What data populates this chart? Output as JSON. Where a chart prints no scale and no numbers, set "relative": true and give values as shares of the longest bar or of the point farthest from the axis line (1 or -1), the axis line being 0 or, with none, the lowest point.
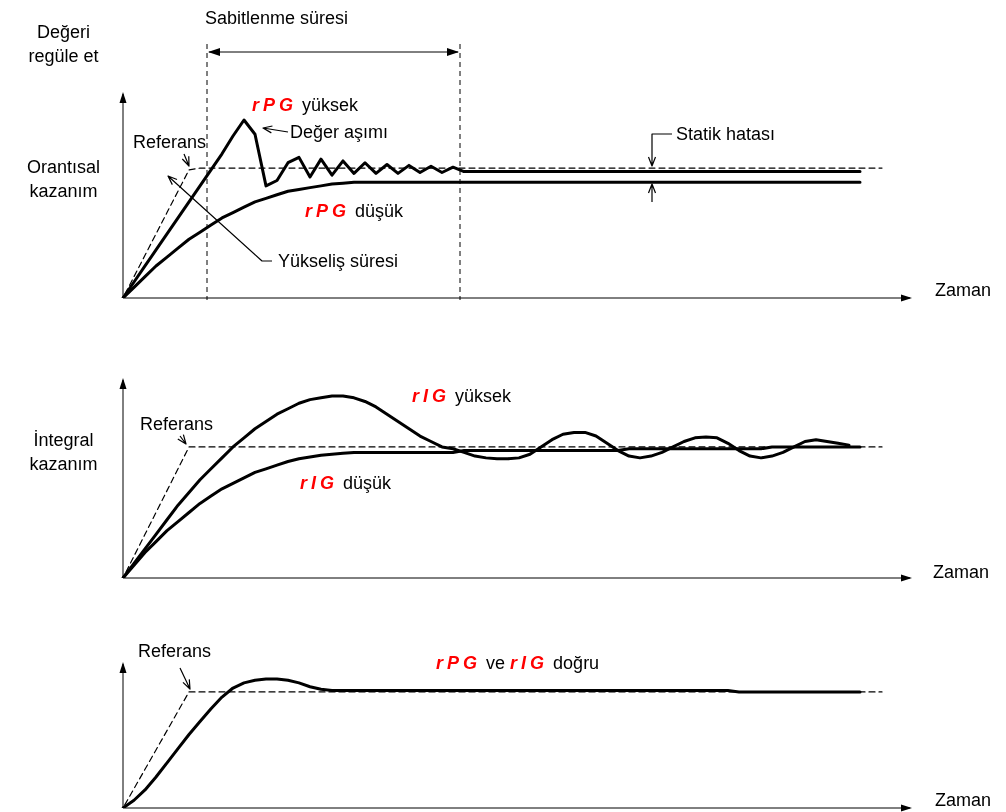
{
  "chart_data": [
    {
      "type": "line",
      "title": "Orantısal kazanım",
      "ylabel": "Değeri regüle et",
      "xlabel": "Zaman",
      "relative": true,
      "legend": false,
      "grid": false,
      "marker": "none",
      "categories": [
        null,
        null,
        null,
        null,
        null,
        null,
        null,
        null,
        null,
        null,
        null,
        null,
        null,
        null,
        null,
        null,
        null,
        null,
        null,
        null,
        null,
        null,
        null,
        null,
        null,
        null,
        null,
        null,
        null,
        null,
        null,
        null,
        null,
        null,
        null,
        null,
        null,
        null,
        null,
        null,
        null,
        null,
        null,
        null,
        null,
        null,
        null,
        null,
        null,
        null,
        null,
        null,
        null,
        null,
        null,
        null,
        null,
        null,
        null,
        null,
        null,
        null,
        null,
        null,
        null,
        null,
        null,
        null,
        null,
        null,
        null,
        null
      ],
      "series": [
        {
          "name": "rPG yüksek",
          "color": "#000000",
          "values": [
            0,
            0.09,
            0.18,
            0.27,
            0.36,
            0.45,
            0.54,
            0.63,
            0.72,
            0.81,
            0.91,
            1.0,
            0.92,
            0.63,
            0.66,
            0.76,
            0.79,
            0.68,
            0.78,
            0.69,
            0.77,
            0.7,
            0.76,
            0.7,
            0.75,
            0.7,
            0.745,
            0.705,
            0.74,
            0.705,
            0.735,
            0.71,
            0.71,
            0.71,
            0.71,
            0.71,
            0.71,
            0.71,
            0.71,
            0.71,
            0.71,
            0.71,
            0.71,
            0.71,
            0.71,
            0.71,
            0.71,
            0.71,
            0.71,
            0.71,
            0.71,
            0.71,
            0.71,
            0.71,
            0.71,
            0.71,
            0.71,
            0.71,
            0.71,
            0.71,
            0.71,
            0.71,
            0.71,
            0.71,
            0.71,
            0.71,
            0.71,
            0.71,
            null,
            null,
            null,
            null
          ]
        },
        {
          "name": "rPG düşük",
          "color": "#000000",
          "values": [
            0,
            0.06,
            0.12,
            0.18,
            0.23,
            0.28,
            0.33,
            0.37,
            0.41,
            0.45,
            0.48,
            0.51,
            0.54,
            0.56,
            0.58,
            0.6,
            0.61,
            0.62,
            0.63,
            0.64,
            0.645,
            0.65,
            0.65,
            0.65,
            0.65,
            0.65,
            0.65,
            0.65,
            0.65,
            0.65,
            0.65,
            0.65,
            0.65,
            0.65,
            0.65,
            0.65,
            0.65,
            0.65,
            0.65,
            0.65,
            0.65,
            0.65,
            0.65,
            0.65,
            0.65,
            0.65,
            0.65,
            0.65,
            0.65,
            0.65,
            0.65,
            0.65,
            0.65,
            0.65,
            0.65,
            0.65,
            0.65,
            0.65,
            0.65,
            0.65,
            0.65,
            0.65,
            0.65,
            0.65,
            0.65,
            0.65,
            0.65,
            0.65,
            null,
            null,
            null,
            null
          ]
        },
        {
          "name": "Referans",
          "color": "#000000",
          "line_style": "dashed",
          "values": [
            0,
            0.12,
            0.24,
            0.36,
            0.48,
            0.6,
            0.72,
            0.73,
            0.73,
            0.73,
            0.73,
            0.73,
            0.73,
            0.73,
            0.73,
            0.73,
            0.73,
            0.73,
            0.73,
            0.73,
            0.73,
            0.73,
            0.73,
            0.73,
            0.73,
            0.73,
            0.73,
            0.73,
            0.73,
            0.73,
            0.73,
            0.73,
            0.73,
            0.73,
            0.73,
            0.73,
            0.73,
            0.73,
            0.73,
            0.73,
            0.73,
            0.73,
            0.73,
            0.73,
            0.73,
            0.73,
            0.73,
            0.73,
            0.73,
            0.73,
            0.73,
            0.73,
            0.73,
            0.73,
            0.73,
            0.73,
            0.73,
            0.73,
            0.73,
            0.73,
            0.73,
            0.73,
            0.73,
            0.73,
            0.73,
            0.73,
            0.73,
            0.73,
            0.73,
            0.73,
            null,
            null
          ]
        }
      ],
      "annotations": [
        "Sabitlenme süresi",
        "Değer aşımı",
        "Statik hatası",
        "Yükseliş süresi"
      ]
    },
    {
      "type": "line",
      "title": "İntegral kazanım",
      "xlabel": "Zaman",
      "relative": true,
      "legend": false,
      "grid": false,
      "marker": "none",
      "categories": [
        null,
        null,
        null,
        null,
        null,
        null,
        null,
        null,
        null,
        null,
        null,
        null,
        null,
        null,
        null,
        null,
        null,
        null,
        null,
        null,
        null,
        null,
        null,
        null,
        null,
        null,
        null,
        null,
        null,
        null,
        null,
        null,
        null,
        null,
        null,
        null,
        null,
        null,
        null,
        null,
        null,
        null,
        null,
        null,
        null,
        null,
        null,
        null,
        null,
        null,
        null,
        null,
        null,
        null,
        null,
        null,
        null,
        null,
        null,
        null,
        null,
        null,
        null,
        null,
        null,
        null,
        null,
        null,
        null,
        null,
        null,
        null
      ],
      "series": [
        {
          "name": "rIG yüksek",
          "color": "#000000",
          "values": [
            0,
            0.08,
            0.16,
            0.24,
            0.32,
            0.4,
            0.47,
            0.54,
            0.6,
            0.66,
            0.72,
            0.77,
            0.82,
            0.86,
            0.9,
            0.93,
            0.96,
            0.98,
            0.99,
            1.0,
            1.0,
            0.99,
            0.97,
            0.94,
            0.9,
            0.86,
            0.82,
            0.78,
            0.75,
            0.72,
            0.71,
            0.69,
            0.67,
            0.66,
            0.655,
            0.655,
            0.66,
            0.68,
            0.72,
            0.76,
            0.79,
            0.8,
            0.8,
            0.78,
            0.74,
            0.7,
            0.67,
            0.66,
            0.67,
            0.69,
            0.72,
            0.75,
            0.77,
            0.775,
            0.77,
            0.74,
            0.7,
            0.67,
            0.66,
            0.67,
            0.69,
            0.72,
            0.75,
            0.76,
            0.75,
            0.74,
            0.73,
            null,
            null,
            null,
            null,
            null
          ]
        },
        {
          "name": "rIG düşük",
          "color": "#000000",
          "values": [
            0,
            0.07,
            0.14,
            0.2,
            0.26,
            0.31,
            0.36,
            0.41,
            0.45,
            0.49,
            0.52,
            0.55,
            0.58,
            0.6,
            0.62,
            0.64,
            0.655,
            0.665,
            0.675,
            0.68,
            0.685,
            0.69,
            0.69,
            0.69,
            0.69,
            0.69,
            0.69,
            0.69,
            0.69,
            0.69,
            0.69,
            0.7,
            0.7,
            0.7,
            0.7,
            0.7,
            0.7,
            0.7,
            0.7,
            0.7,
            0.7,
            0.7,
            0.7,
            0.7,
            0.7,
            0.7,
            0.71,
            0.71,
            0.71,
            0.71,
            0.71,
            0.71,
            0.71,
            0.71,
            0.71,
            0.71,
            0.71,
            0.71,
            0.71,
            0.72,
            0.72,
            0.72,
            0.72,
            0.72,
            0.72,
            0.72,
            0.72,
            0.72,
            null,
            null,
            null,
            null
          ]
        },
        {
          "name": "Referans",
          "color": "#000000",
          "line_style": "dashed",
          "values": [
            0,
            0.12,
            0.24,
            0.36,
            0.48,
            0.6,
            0.72,
            0.72,
            0.72,
            0.72,
            0.72,
            0.72,
            0.72,
            0.72,
            0.72,
            0.72,
            0.72,
            0.72,
            0.72,
            0.72,
            0.72,
            0.72,
            0.72,
            0.72,
            0.72,
            0.72,
            0.72,
            0.72,
            0.72,
            0.72,
            0.72,
            0.72,
            0.72,
            0.72,
            0.72,
            0.72,
            0.72,
            0.72,
            0.72,
            0.72,
            0.72,
            0.72,
            0.72,
            0.72,
            0.72,
            0.72,
            0.72,
            0.72,
            0.72,
            0.72,
            0.72,
            0.72,
            0.72,
            0.72,
            0.72,
            0.72,
            0.72,
            0.72,
            0.72,
            0.72,
            0.72,
            0.72,
            0.72,
            0.72,
            0.72,
            0.72,
            0.72,
            0.72,
            0.72,
            0.72,
            null,
            null
          ]
        }
      ]
    },
    {
      "type": "line",
      "xlabel": "Zaman",
      "relative": true,
      "legend": false,
      "grid": false,
      "marker": "none",
      "categories": [
        null,
        null,
        null,
        null,
        null,
        null,
        null,
        null,
        null,
        null,
        null,
        null,
        null,
        null,
        null,
        null,
        null,
        null,
        null,
        null,
        null,
        null,
        null,
        null,
        null,
        null,
        null,
        null,
        null,
        null,
        null,
        null,
        null,
        null,
        null,
        null,
        null,
        null,
        null,
        null,
        null,
        null,
        null,
        null,
        null,
        null,
        null,
        null,
        null,
        null,
        null,
        null,
        null,
        null,
        null,
        null,
        null,
        null,
        null,
        null,
        null,
        null,
        null,
        null,
        null,
        null,
        null,
        null,
        null,
        null,
        null,
        null
      ],
      "series": [
        {
          "name": "rPG ve rIG doğru",
          "color": "#000000",
          "values": [
            0,
            0.06,
            0.14,
            0.24,
            0.35,
            0.46,
            0.57,
            0.67,
            0.77,
            0.86,
            0.93,
            0.97,
            0.99,
            1.0,
            1.0,
            0.99,
            0.97,
            0.94,
            0.92,
            0.91,
            0.91,
            0.91,
            0.91,
            0.91,
            0.91,
            0.91,
            0.91,
            0.91,
            0.91,
            0.91,
            0.91,
            0.91,
            0.91,
            0.91,
            0.91,
            0.91,
            0.91,
            0.91,
            0.91,
            0.91,
            0.91,
            0.91,
            0.91,
            0.91,
            0.91,
            0.91,
            0.91,
            0.91,
            0.91,
            0.91,
            0.91,
            0.91,
            0.91,
            0.91,
            0.91,
            0.91,
            0.9,
            0.9,
            0.9,
            0.9,
            0.9,
            0.9,
            0.9,
            0.9,
            0.9,
            0.9,
            0.9,
            0.9,
            null,
            null,
            null,
            null
          ]
        },
        {
          "name": "Referans",
          "color": "#000000",
          "line_style": "dashed",
          "values": [
            0,
            0.15,
            0.3,
            0.45,
            0.6,
            0.75,
            0.9,
            0.9,
            0.9,
            0.9,
            0.9,
            0.9,
            0.9,
            0.9,
            0.9,
            0.9,
            0.9,
            0.9,
            0.9,
            0.9,
            0.9,
            0.9,
            0.9,
            0.9,
            0.9,
            0.9,
            0.9,
            0.9,
            0.9,
            0.9,
            0.9,
            0.9,
            0.9,
            0.9,
            0.9,
            0.9,
            0.9,
            0.9,
            0.9,
            0.9,
            0.9,
            0.9,
            0.9,
            0.9,
            0.9,
            0.9,
            0.9,
            0.9,
            0.9,
            0.9,
            0.9,
            0.9,
            0.9,
            0.9,
            0.9,
            0.9,
            0.9,
            0.9,
            0.9,
            0.9,
            0.9,
            0.9,
            0.9,
            0.9,
            0.9,
            0.9,
            0.9,
            0.9,
            0.9,
            0.9,
            null,
            null
          ]
        }
      ]
    }
  ]
}
